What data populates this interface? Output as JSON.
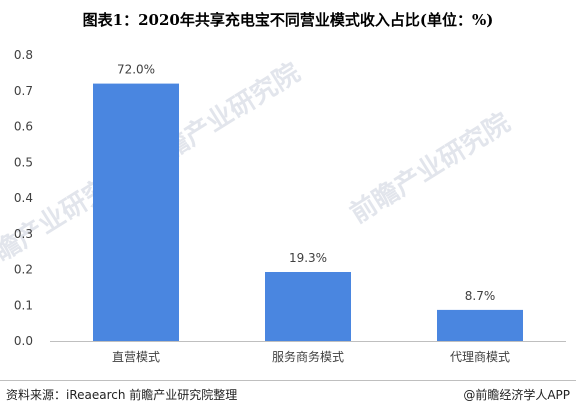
{
  "title": "图表1：2020年共享充电宝不同营业模式收入占比(单位：%)",
  "watermark": "前瞻产业研究院",
  "source": "资料来源：iReaearch 前瞻产业研究院整理",
  "brand": "@前瞻经济学人APP",
  "colors": {
    "bar": "#4a86e0",
    "axis": "#bfbfbf",
    "text": "#404040"
  },
  "chart_data": {
    "type": "bar",
    "categories": [
      "直营模式",
      "服务商务模式",
      "代理商模式"
    ],
    "values": [
      0.72,
      0.193,
      0.087
    ],
    "data_labels": [
      "72.0%",
      "19.3%",
      "8.7%"
    ],
    "ylim": [
      0,
      0.8
    ],
    "yticks": [
      "0.0",
      "0.1",
      "0.2",
      "0.3",
      "0.4",
      "0.5",
      "0.6",
      "0.7",
      "0.8"
    ],
    "grid": false,
    "legend": "none"
  }
}
